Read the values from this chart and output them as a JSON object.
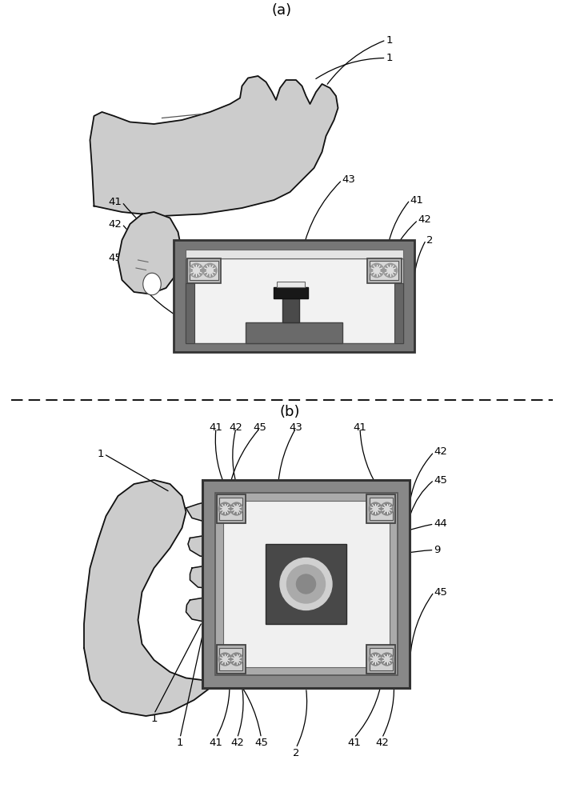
{
  "fig_width": 7.05,
  "fig_height": 10.0,
  "dpi": 100,
  "bg_color": "#ffffff",
  "label_a": "(a)",
  "label_b": "(b)",
  "colors": {
    "hand_fill": "#cccccc",
    "hand_stroke": "#111111",
    "device_gray": "#888888",
    "device_dark": "#555555",
    "device_inner": "#f0f0f0",
    "plate_white": "#e8e8e8",
    "corner_box": "#c8c8c8",
    "sensor_base": "#707070",
    "sensor_stem": "#484848",
    "sensor_cap": "#222222",
    "sensor_top_white": "#e0e0e0",
    "dark_square": "#4a4a4a",
    "ring_white": "#e0e0e0",
    "ring_mid": "#aaaaaa",
    "ring_inner": "#777777",
    "hatch_dark": "#888888",
    "hatch_light": "#bbbbbb"
  }
}
